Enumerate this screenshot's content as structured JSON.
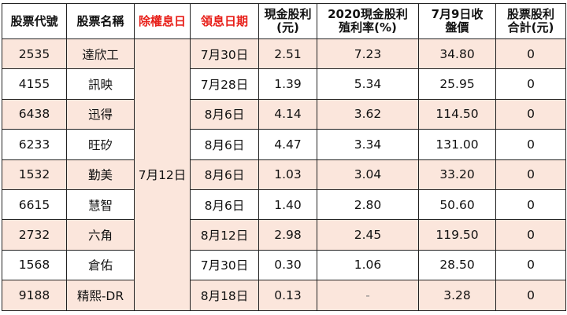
{
  "headers": {
    "code": "股票代號",
    "name": "股票名稱",
    "ex_date": "除權息日",
    "pay_date": "領息日期",
    "cash_dividend": "現金股利(元)",
    "yield_2020": "2020現金股利殖利率(%)",
    "close_price": "7月9日收盤價",
    "stock_dividend": "股票股利合計(元)"
  },
  "ex_dividend_date": "7月12日",
  "rows": [
    {
      "code": "2535",
      "name": "達欣工",
      "pay_date": "7月30日",
      "cash": "2.51",
      "yield": "7.23",
      "close": "34.80",
      "stock": "0"
    },
    {
      "code": "4155",
      "name": "訊映",
      "pay_date": "7月28日",
      "cash": "1.39",
      "yield": "5.34",
      "close": "25.95",
      "stock": "0"
    },
    {
      "code": "6438",
      "name": "迅得",
      "pay_date": "8月6日",
      "cash": "4.14",
      "yield": "3.62",
      "close": "114.50",
      "stock": "0"
    },
    {
      "code": "6233",
      "name": "旺矽",
      "pay_date": "8月6日",
      "cash": "4.47",
      "yield": "3.34",
      "close": "131.00",
      "stock": "0"
    },
    {
      "code": "1532",
      "name": "勤美",
      "pay_date": "8月6日",
      "cash": "1.03",
      "yield": "3.04",
      "close": "33.20",
      "stock": "0"
    },
    {
      "code": "6615",
      "name": "慧智",
      "pay_date": "8月6日",
      "cash": "1.40",
      "yield": "2.80",
      "close": "50.60",
      "stock": "0"
    },
    {
      "code": "2732",
      "name": "六角",
      "pay_date": "8月12日",
      "cash": "2.98",
      "yield": "2.45",
      "close": "119.50",
      "stock": "0"
    },
    {
      "code": "1568",
      "name": "倉佑",
      "pay_date": "7月30日",
      "cash": "0.30",
      "yield": "1.06",
      "close": "28.50",
      "stock": "0"
    },
    {
      "code": "9188",
      "name": "精熙-DR",
      "pay_date": "8月18日",
      "cash": "0.13",
      "yield": "-",
      "close": "3.28",
      "stock": "0"
    }
  ],
  "colors": {
    "header_red": "#e8201a",
    "row_highlight": "#fbe6dc",
    "border": "#222222"
  }
}
